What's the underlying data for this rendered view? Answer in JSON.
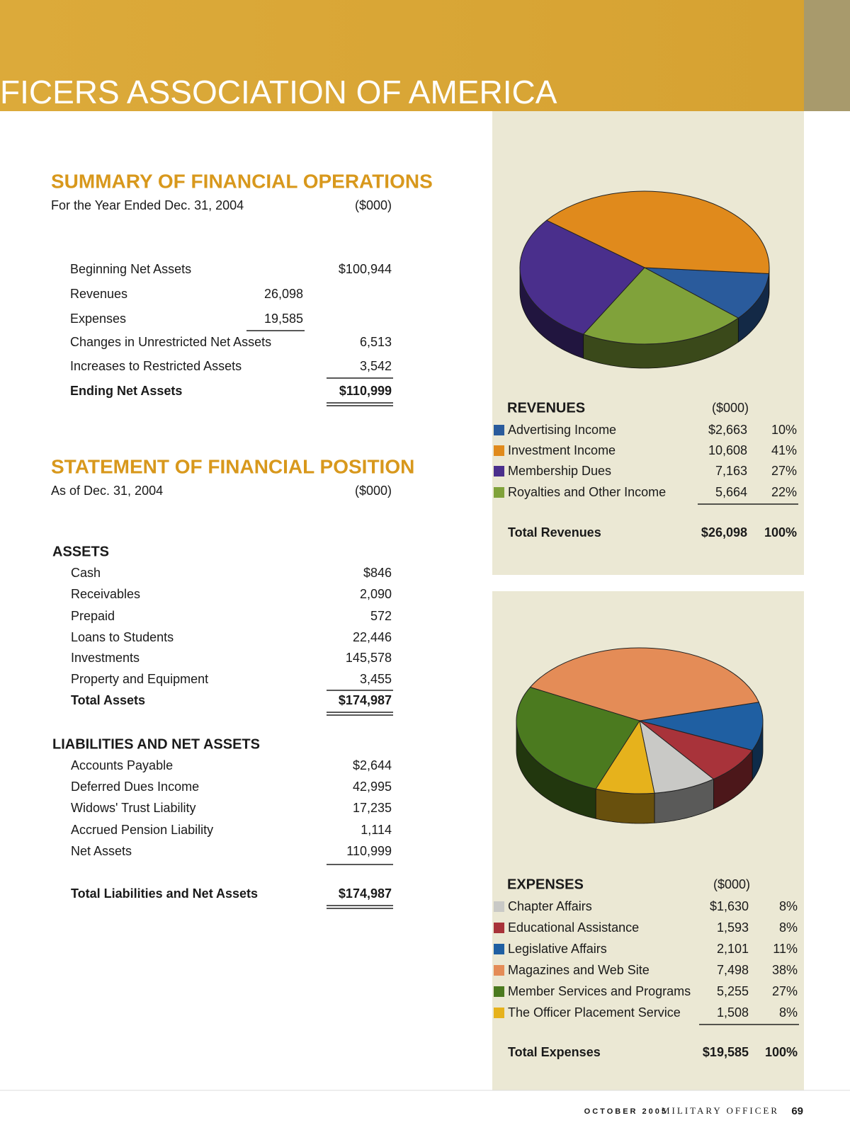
{
  "header": {
    "title": "FICERS ASSOCIATION OF AMERICA"
  },
  "summary": {
    "title": "SUMMARY OF FINANCIAL OPERATIONS",
    "subtitle": "For the Year Ended Dec. 31, 2004",
    "unit": "($000)",
    "rows": [
      {
        "label": "Beginning Net Assets",
        "amount": "$100,944"
      },
      {
        "label": "Revenues",
        "subtotal": "26,098"
      },
      {
        "label": "Expenses",
        "subtotal": "19,585"
      },
      {
        "label": "Changes in Unrestricted Net Assets",
        "amount": "6,513"
      },
      {
        "label": "Increases to Restricted Assets",
        "amount": "3,542"
      },
      {
        "label": "Ending Net Assets",
        "amount": "$110,999"
      }
    ]
  },
  "position": {
    "title": "STATEMENT OF FINANCIAL POSITION",
    "subtitle": "As of Dec. 31, 2004",
    "unit": "($000)",
    "assets": {
      "heading": "ASSETS",
      "rows": [
        {
          "label": "Cash",
          "amount": "$846"
        },
        {
          "label": "Receivables",
          "amount": "2,090"
        },
        {
          "label": "Prepaid",
          "amount": "572"
        },
        {
          "label": "Loans to Students",
          "amount": "22,446"
        },
        {
          "label": "Investments",
          "amount": "145,578"
        },
        {
          "label": "Property and Equipment",
          "amount": "3,455"
        },
        {
          "label": "Total Assets",
          "amount": "$174,987"
        }
      ]
    },
    "liabilities": {
      "heading": "LIABILITIES AND NET ASSETS",
      "rows": [
        {
          "label": "Accounts Payable",
          "amount": "$2,644"
        },
        {
          "label": "Deferred Dues Income",
          "amount": "42,995"
        },
        {
          "label": "Widows' Trust Liability",
          "amount": "17,235"
        },
        {
          "label": "Accrued Pension Liability",
          "amount": "1,114"
        },
        {
          "label": "Net Assets",
          "amount": "110,999"
        },
        {
          "label": "Total Liabilities and Net Assets",
          "amount": "$174,987"
        }
      ]
    }
  },
  "revenues": {
    "type": "pie",
    "title": "REVENUES",
    "unit": "($000)",
    "categories": [
      "Advertising Income",
      "Investment Income",
      "Membership Dues",
      "Royalties and Other Income"
    ],
    "values": [
      2663,
      10608,
      7163,
      5664
    ],
    "value_labels": [
      "$2,663",
      "10,608",
      "7,163",
      "5,664"
    ],
    "percents": [
      10,
      41,
      27,
      22
    ],
    "percent_labels": [
      "10%",
      "41%",
      "27%",
      "22%"
    ],
    "colors": [
      "#2a5b9c",
      "#e08a1c",
      "#4a2f8c",
      "#80a23a"
    ],
    "total": {
      "label": "Total Revenues",
      "amount": "$26,098",
      "percent": "100%"
    }
  },
  "expenses": {
    "type": "pie",
    "title": "EXPENSES",
    "unit": "($000)",
    "categories": [
      "Chapter Affairs",
      "Educational Assistance",
      "Legislative Affairs",
      "Magazines and Web Site",
      "Member Services and Programs",
      "The Officer Placement Service"
    ],
    "values": [
      1630,
      1593,
      2101,
      7498,
      5255,
      1508
    ],
    "value_labels": [
      "$1,630",
      "1,593",
      "2,101",
      "7,498",
      "5,255",
      "1,508"
    ],
    "percents": [
      8,
      8,
      11,
      38,
      27,
      8
    ],
    "percent_labels": [
      "8%",
      "8%",
      "11%",
      "38%",
      "27%",
      "8%"
    ],
    "colors": [
      "#c9c9c6",
      "#a8333a",
      "#1f5fa2",
      "#e48c57",
      "#4b7a1f",
      "#e6b21c"
    ],
    "total": {
      "label": "Total Expenses",
      "amount": "$19,585",
      "percent": "100%"
    }
  },
  "footer": {
    "date": "OCTOBER 2005",
    "magazine": "MILITARY OFFICER",
    "page": "69"
  }
}
